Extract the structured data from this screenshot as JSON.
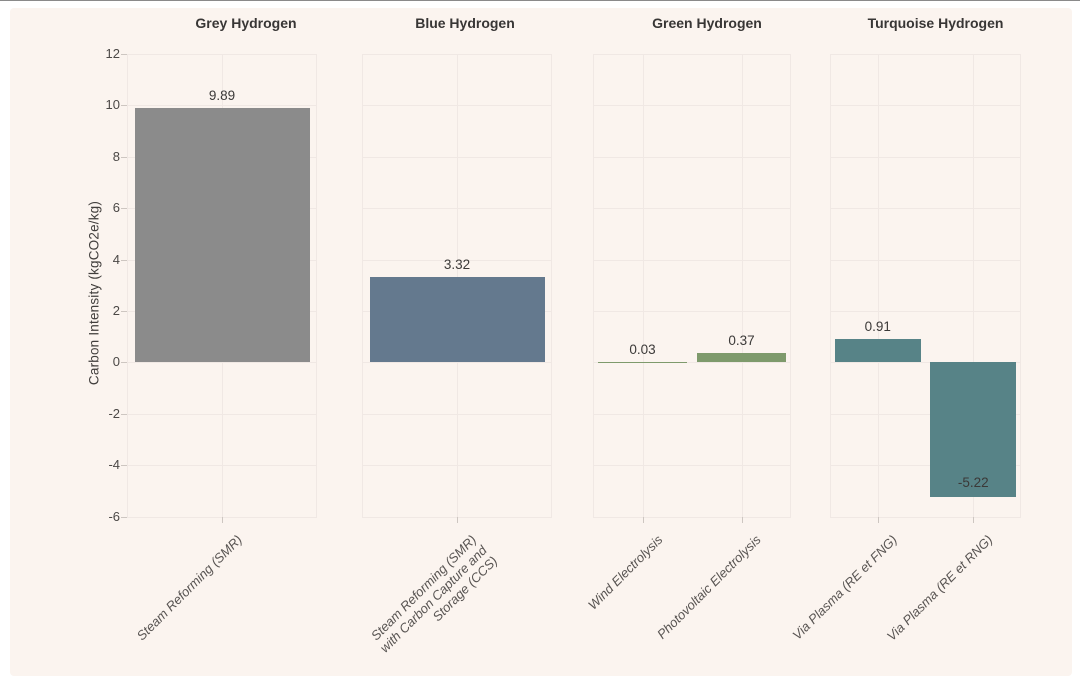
{
  "page": {
    "background": "#ffffff",
    "top_border_color": "#8a8a8a"
  },
  "chart_data": {
    "type": "bar",
    "title": "",
    "xlabel": "",
    "ylabel": "Carbon Intensity (kgCO2e/kg)",
    "ylim": [
      -6,
      12
    ],
    "yticks": [
      12,
      10,
      8,
      6,
      4,
      2,
      0,
      -2,
      -4,
      -6
    ],
    "grid": "on",
    "legend": "none",
    "background_color": "#fbf4ef",
    "gridline_color": "#f0e8e4",
    "tick_mark_color": "#cdc6c1",
    "value_label_color": "#3b3938",
    "axis_text_color": "#4b4846",
    "panels": [
      {
        "title": "Grey Hydrogen",
        "bar_color": "#8b8b8b",
        "bars": [
          {
            "label_lines": [
              "Steam Reforming (SMR)"
            ],
            "value": 9.89,
            "value_label": "9.89"
          }
        ]
      },
      {
        "title": "Blue Hydrogen",
        "bar_color": "#64798e",
        "bars": [
          {
            "label_lines": [
              "Steam Reforming (SMR)",
              "with Carbon Capture and",
              "Storage (CCS)"
            ],
            "value": 3.32,
            "value_label": "3.32"
          }
        ]
      },
      {
        "title": "Green Hydrogen",
        "bar_color": "#7e9a6c",
        "bars": [
          {
            "label_lines": [
              "Wind Electrolysis"
            ],
            "value": 0.03,
            "value_label": "0.03"
          },
          {
            "label_lines": [
              "Photovoltaic Electrolysis"
            ],
            "value": 0.37,
            "value_label": "0.37"
          }
        ]
      },
      {
        "title": "Turquoise Hydrogen",
        "bar_color": "#578387",
        "bars": [
          {
            "label_lines": [
              "Via Plasma (RE et FNG)"
            ],
            "value": 0.91,
            "value_label": "0.91"
          },
          {
            "label_lines": [
              "Via Plasma (RE et RNG)"
            ],
            "value": -5.22,
            "value_label": "-5.22"
          }
        ]
      }
    ]
  }
}
